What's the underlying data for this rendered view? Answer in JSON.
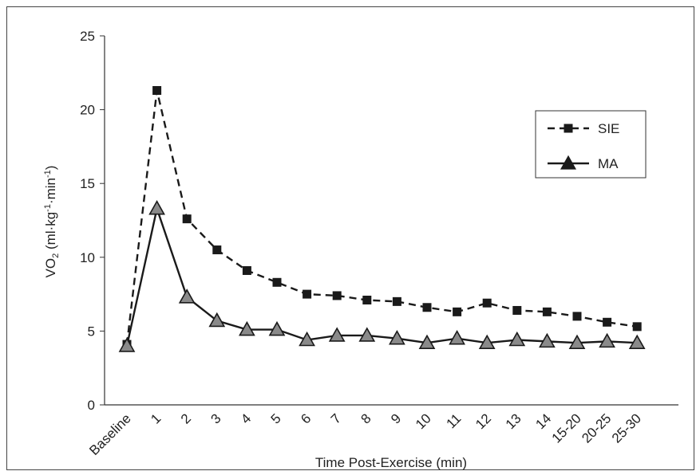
{
  "chart_data": {
    "type": "line",
    "xlabel": "Time Post-Exercise (min)",
    "ylabel": {
      "base": "VO",
      "sub": "2",
      "unit_open": " (ml·kg",
      "sup1": "-1",
      "unit_mid": "·min",
      "sup2": "-1",
      "unit_close": ")"
    },
    "ylim": [
      0,
      25
    ],
    "yticks": [
      0,
      5,
      10,
      15,
      20,
      25
    ],
    "categories": [
      "Baseline",
      "1",
      "2",
      "3",
      "4",
      "5",
      "6",
      "7",
      "8",
      "9",
      "10",
      "11",
      "12",
      "13",
      "14",
      "15-20",
      "20-25",
      "25-30"
    ],
    "grid": false,
    "legend_position": "top-right",
    "series": [
      {
        "name": "SIE",
        "style": "dashed",
        "marker": "square",
        "color": "#1a1a1a",
        "values": [
          4.1,
          21.3,
          12.6,
          10.5,
          9.1,
          8.3,
          7.5,
          7.4,
          7.1,
          7.0,
          6.6,
          6.3,
          6.9,
          6.4,
          6.3,
          6.0,
          5.6,
          5.3
        ]
      },
      {
        "name": "MA",
        "style": "solid",
        "marker": "triangle",
        "color": "#1a1a1a",
        "values": [
          4.0,
          13.3,
          7.3,
          5.7,
          5.1,
          5.1,
          4.4,
          4.7,
          4.7,
          4.5,
          4.2,
          4.5,
          4.2,
          4.4,
          4.3,
          4.2,
          4.3,
          4.2
        ]
      }
    ]
  }
}
